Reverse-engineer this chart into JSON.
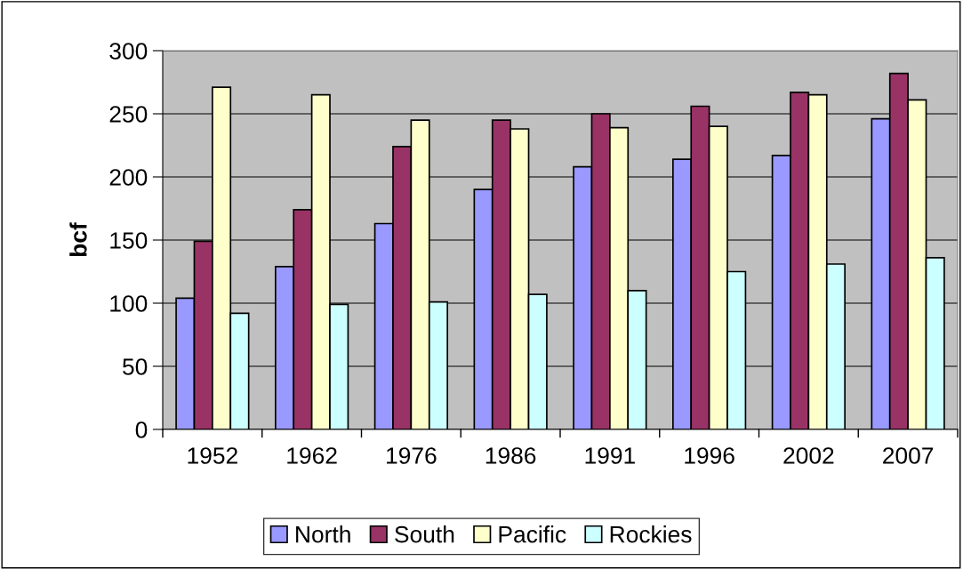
{
  "chart_data": {
    "type": "bar",
    "ylabel": "bcf",
    "categories": [
      "1952",
      "1962",
      "1976",
      "1986",
      "1991",
      "1996",
      "2002",
      "2007"
    ],
    "series": [
      {
        "name": "North",
        "color": "#9999ff",
        "values": [
          104,
          129,
          163,
          190,
          208,
          214,
          217,
          246
        ]
      },
      {
        "name": "South",
        "color": "#993366",
        "values": [
          149,
          174,
          224,
          245,
          250,
          256,
          267,
          282
        ]
      },
      {
        "name": "Pacific",
        "color": "#ffffcc",
        "values": [
          271,
          265,
          245,
          238,
          239,
          240,
          265,
          261
        ]
      },
      {
        "name": "Rockies",
        "color": "#ccffff",
        "values": [
          92,
          99,
          101,
          107,
          110,
          125,
          131,
          136
        ]
      }
    ],
    "ylim": [
      0,
      300
    ],
    "yticks": [
      0,
      50,
      100,
      150,
      200,
      250,
      300
    ],
    "grid": "y",
    "legend": "bottom"
  }
}
